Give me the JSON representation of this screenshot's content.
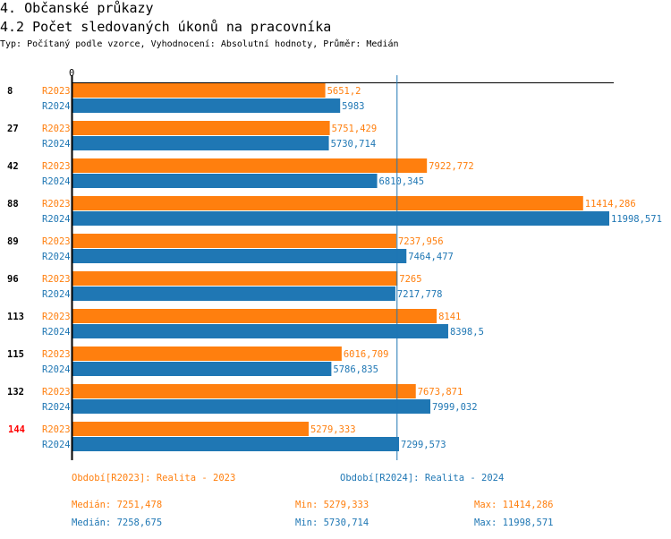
{
  "title": "4. Občanské průkazy",
  "subtitle": "4.2 Počet sledovaných úkonů na pracovníka",
  "description": "Typ: Počítaný podle vzorce, Vyhodnocení: Absolutní hodnoty, Průměr: Medián",
  "chart_data": {
    "type": "bar",
    "orientation": "horizontal",
    "axis_zero_label": "0",
    "xlim": [
      0,
      12100
    ],
    "reference_line": 7255,
    "categories": [
      "8",
      "27",
      "42",
      "88",
      "89",
      "96",
      "113",
      "115",
      "132",
      "144"
    ],
    "highlight_category": "144",
    "series": [
      {
        "name": "R2023",
        "color": "#ff7f0e",
        "values": [
          5651.2,
          5751.429,
          7922.772,
          11414.286,
          7237.956,
          7265,
          8141,
          6016.709,
          7673.871,
          5279.333
        ],
        "labels": [
          "5651,2",
          "5751,429",
          "7922,772",
          "11414,286",
          "7237,956",
          "7265",
          "8141",
          "6016,709",
          "7673,871",
          "5279,333"
        ]
      },
      {
        "name": "R2024",
        "color": "#1f77b4",
        "values": [
          5983,
          5730.714,
          6810.345,
          11998.571,
          7464.477,
          7217.778,
          8398.5,
          5786.835,
          7999.032,
          7299.573
        ],
        "labels": [
          "5983",
          "5730,714",
          "6810,345",
          "11998,571",
          "7464,477",
          "7217,778",
          "8398,5",
          "5786,835",
          "7999,032",
          "7299,573"
        ]
      }
    ]
  },
  "legend": {
    "r2023": "Období[R2023]: Realita - 2023",
    "r2024": "Období[R2024]: Realita - 2024"
  },
  "stats": {
    "r2023": {
      "median": "Medián: 7251,478",
      "min": "Min: 5279,333",
      "max": "Max: 11414,286"
    },
    "r2024": {
      "median": "Medián: 7258,675",
      "min": "Min: 5730,714",
      "max": "Max: 11998,571"
    }
  }
}
